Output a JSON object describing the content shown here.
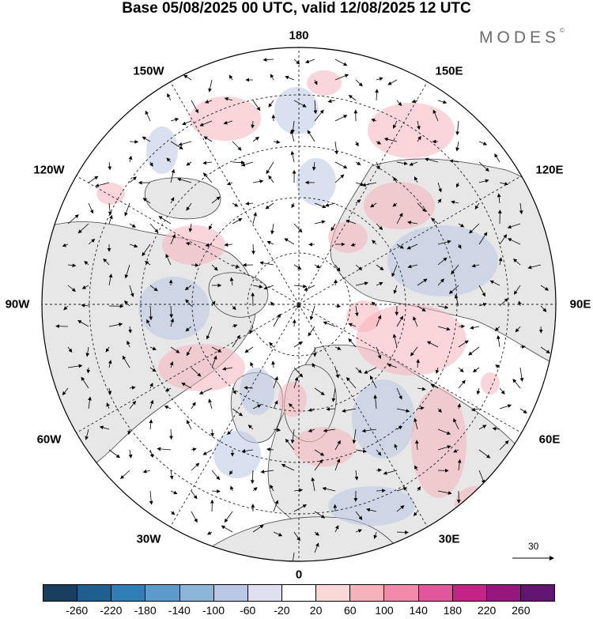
{
  "title": "Base 05/08/2025 00 UTC, valid 12/08/2025 12 UTC",
  "logo": {
    "text": "MODES",
    "mark": "©"
  },
  "longitude_labels": [
    "180",
    "150E",
    "120E",
    "90E",
    "60E",
    "30E",
    "0",
    "30W",
    "60W",
    "90W",
    "120W",
    "150W"
  ],
  "wind_reference": {
    "value": "30",
    "icon": "arrow-right-icon"
  },
  "colorbar": {
    "colors": [
      "#17405f",
      "#1d5f8f",
      "#2f7fb5",
      "#5b9ccb",
      "#8bb6da",
      "#b9c8e4",
      "#e0dfef",
      "#ffffff",
      "#fbd8d8",
      "#f6b2bb",
      "#f28aab",
      "#e2569c",
      "#c42487",
      "#98177f",
      "#621571"
    ],
    "tick_labels": [
      "-260",
      "-220",
      "-180",
      "-140",
      "-100",
      "-60",
      "-20",
      "20",
      "60",
      "100",
      "140",
      "180",
      "220",
      "260"
    ]
  },
  "map_colors": {
    "land": "#e7e7e7",
    "coastline": "#444444",
    "grid": "#222222",
    "arrow": "#000000",
    "anomaly_positive": "#f6b2bb",
    "anomaly_negative": "#b9c8e4"
  }
}
